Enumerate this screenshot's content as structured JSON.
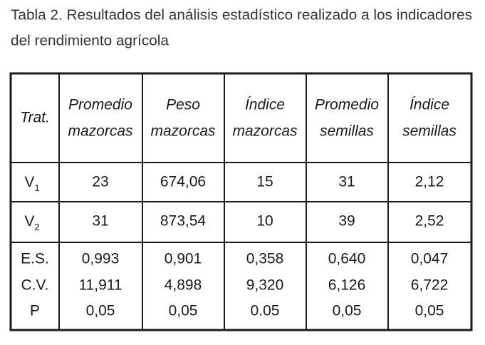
{
  "title": {
    "line1": "Tabla 2. Resultados del análisis estadístico realizado a los indicadores",
    "line2": "del rendimiento agrícola"
  },
  "table": {
    "header": [
      [
        "Trat."
      ],
      [
        "Promedio",
        "mazorcas"
      ],
      [
        "Peso",
        "mazorcas"
      ],
      [
        "Índice",
        "mazorcas"
      ],
      [
        "Promedio",
        "semillas"
      ],
      [
        "Índice",
        "semillas"
      ]
    ],
    "rows": [
      {
        "label": {
          "text": "V",
          "sub": "1"
        },
        "cells": [
          "23",
          "674,06",
          "15",
          "31",
          "2,12"
        ]
      },
      {
        "label": {
          "text": "V",
          "sub": "2"
        },
        "cells": [
          "31",
          "873,54",
          "10",
          "39",
          "2,52"
        ]
      }
    ],
    "stats": [
      {
        "label": "E.S.",
        "cells": [
          "0,993",
          "0,901",
          "0,358",
          "0,640",
          "0,047"
        ]
      },
      {
        "label": "C.V.",
        "cells": [
          "11,911",
          "4,898",
          "9,320",
          "6,126",
          "6,722"
        ]
      },
      {
        "label": "P",
        "cells": [
          "0,05",
          "0,05",
          "0.05",
          "0,05",
          "0,05"
        ]
      }
    ]
  }
}
